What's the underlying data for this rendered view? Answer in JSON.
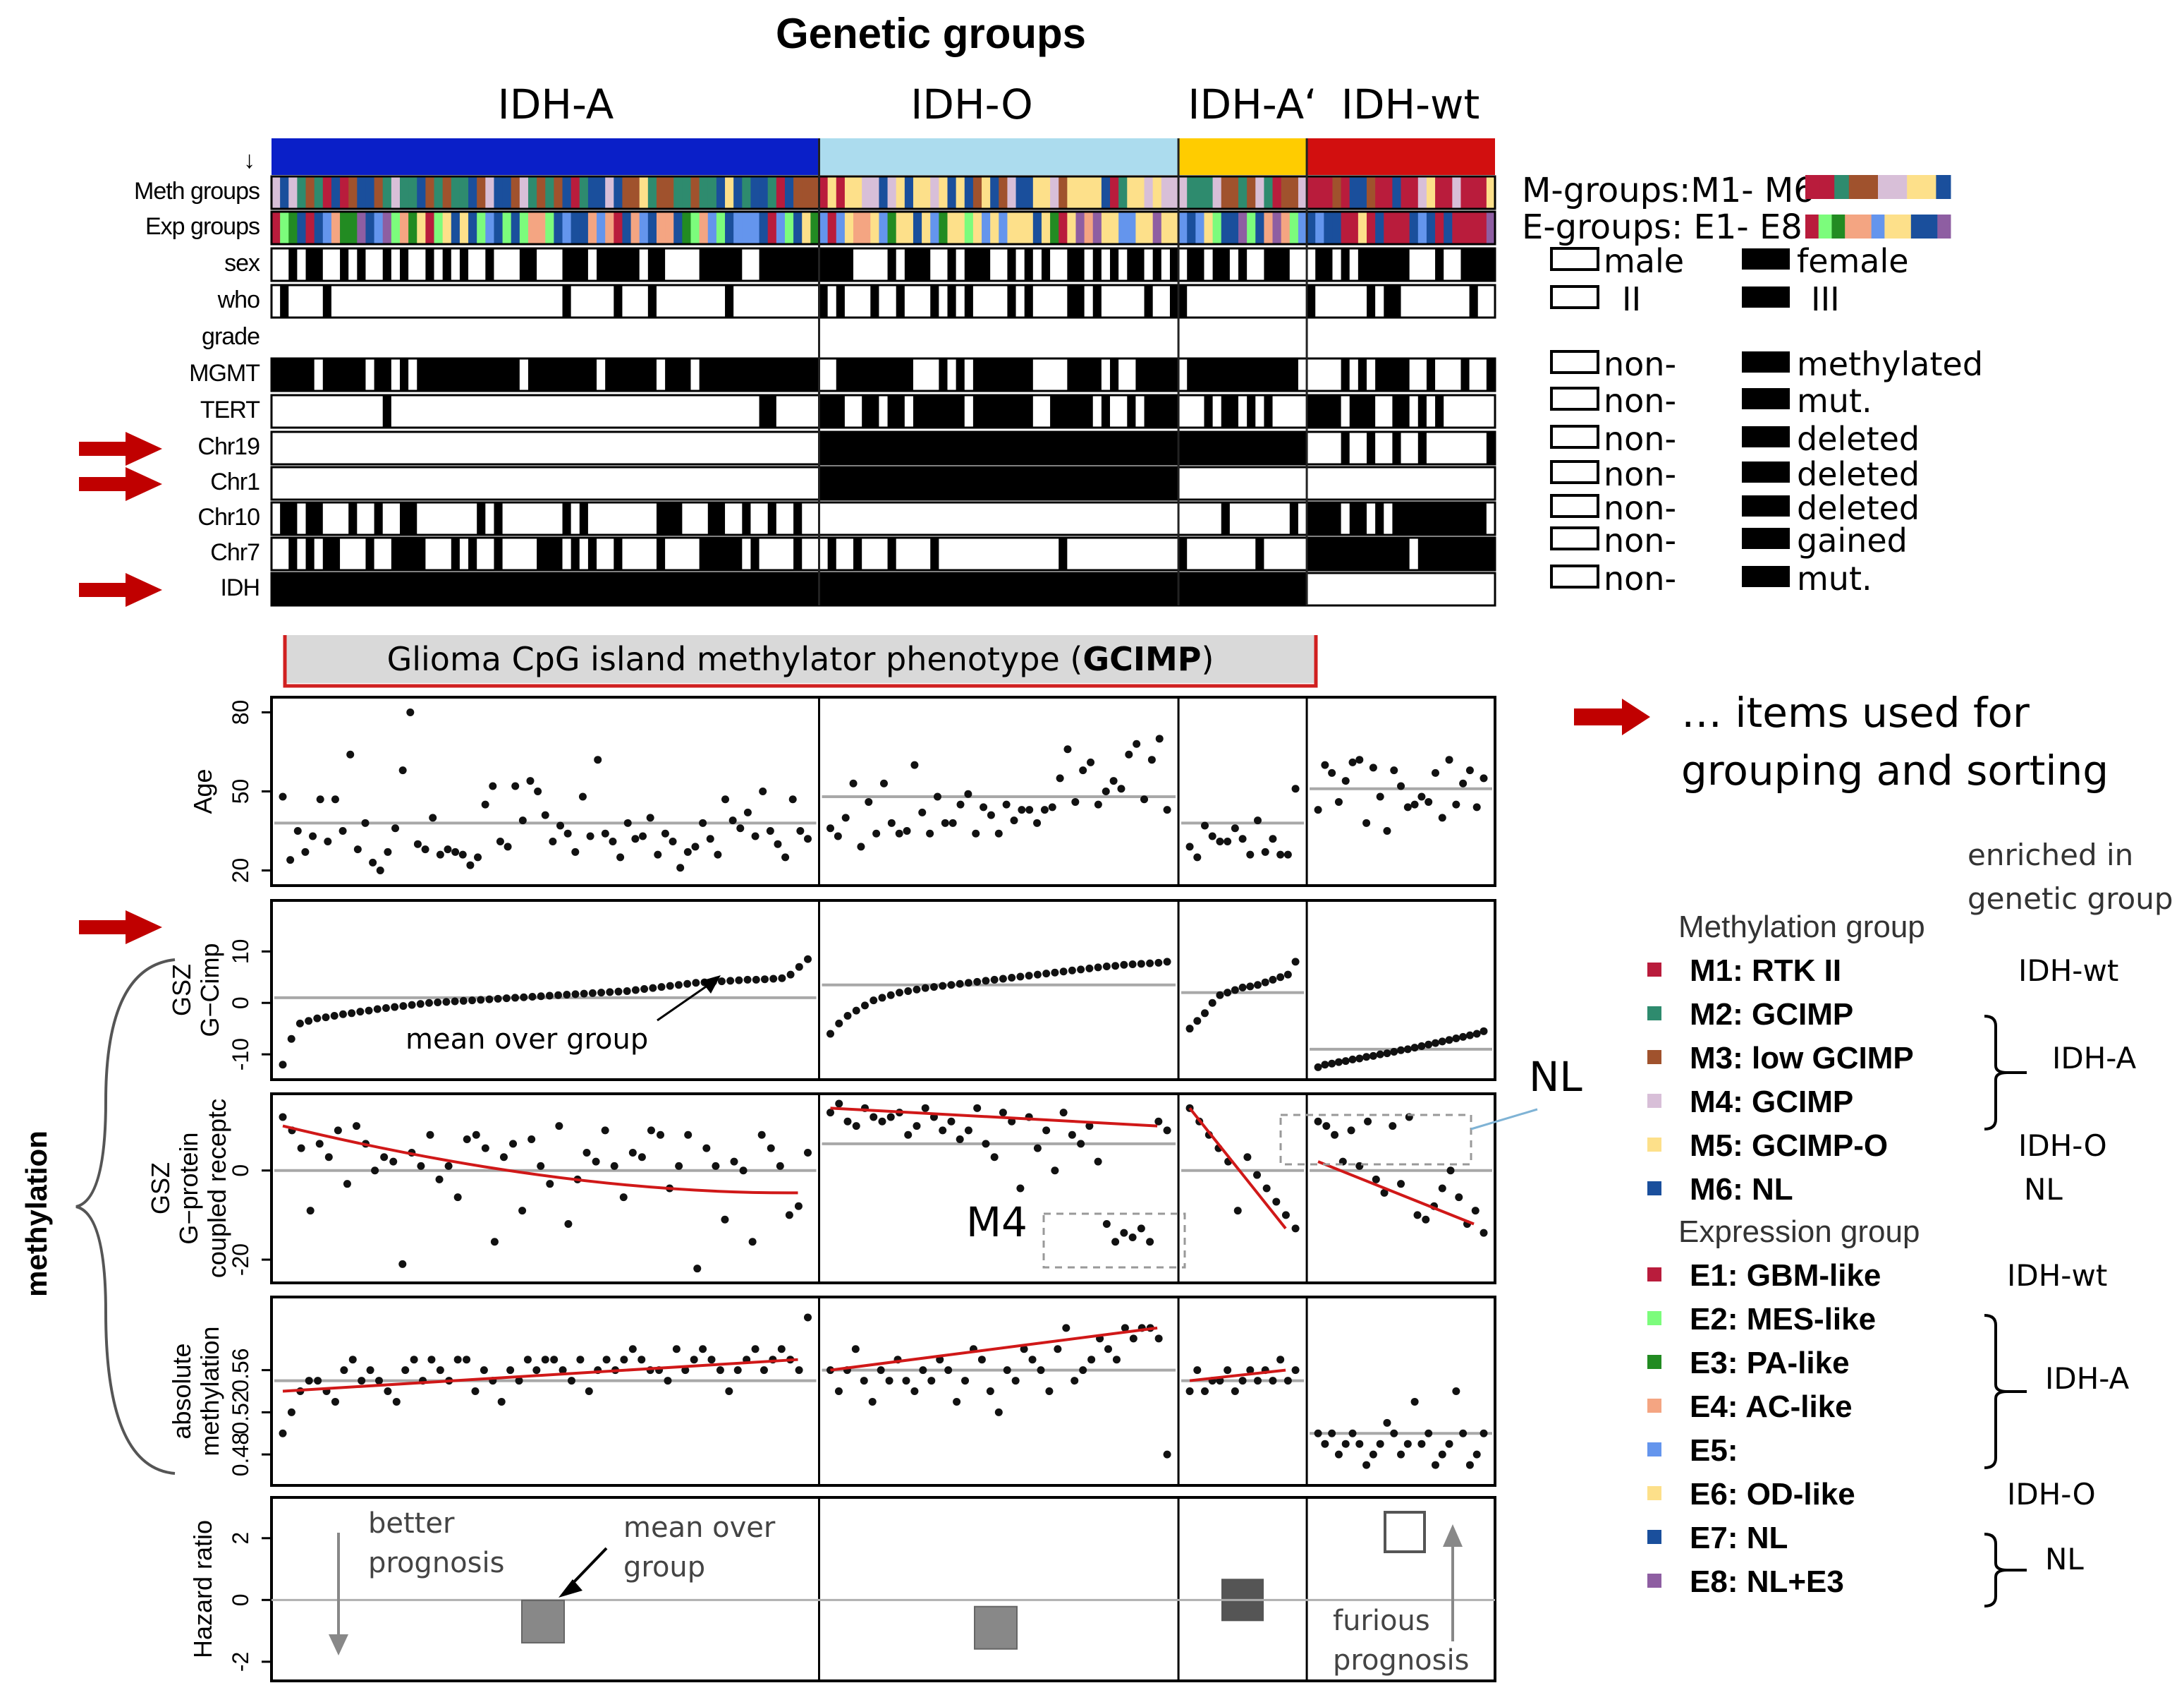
{
  "title": "Genetic groups",
  "groups": [
    {
      "label": "IDH-A",
      "color": "#0a1fc8",
      "n": 64
    },
    {
      "label": "IDH-O",
      "color": "#acdcee",
      "n": 42
    },
    {
      "label": "IDH-A‘",
      "color": "#ffcc00",
      "n": 15
    },
    {
      "label": "IDH-wt",
      "color": "#d20f0f",
      "n": 22
    }
  ],
  "top_strip_label": "↓",
  "annotation_rows": [
    {
      "label": "Meth groups",
      "kind": "meth"
    },
    {
      "label": "Exp groups",
      "kind": "exp"
    },
    {
      "label": "sex",
      "kind": "binary"
    },
    {
      "label": "who",
      "kind": "binary"
    },
    {
      "label": "grade",
      "kind": "blank"
    },
    {
      "label": "MGMT",
      "kind": "binary"
    },
    {
      "label": "TERT",
      "kind": "binary"
    },
    {
      "label": "Chr19",
      "kind": "binary",
      "arrow": true
    },
    {
      "label": "Chr1",
      "kind": "binary",
      "arrow": true
    },
    {
      "label": "Chr10",
      "kind": "binary"
    },
    {
      "label": "Chr7",
      "kind": "binary"
    },
    {
      "label": "IDH",
      "kind": "binary",
      "arrow": true
    }
  ],
  "right_legend": {
    "m_groups": "M-groups:M1- M6",
    "e_groups": "E-groups: E1- E8",
    "m_colors": [
      "#b91c3c",
      "#b91c3c",
      "#2e8b6e",
      "#a0522d",
      "#a0522d",
      "#d8bfd8",
      "#d8bfd8",
      "#fde08a",
      "#fde08a",
      "#1a4f9c"
    ],
    "e_colors": [
      "#b91c3c",
      "#7cfc7c",
      "#228b22",
      "#f4a582",
      "#f4a582",
      "#6495ed",
      "#fde08a",
      "#fde08a",
      "#1a4f9c",
      "#1a4f9c",
      "#8e5ea2"
    ],
    "pairs": [
      {
        "open": "male",
        "filled": "female"
      },
      {
        "open": "II",
        "filled": "III"
      },
      {
        "open": "non-",
        "filled": "methylated"
      },
      {
        "open": "non-",
        "filled": "mut."
      },
      {
        "open": "non-",
        "filled": "deleted"
      },
      {
        "open": "non-",
        "filled": "deleted"
      },
      {
        "open": "non-",
        "filled": "deleted"
      },
      {
        "open": "non-",
        "filled": "gained"
      },
      {
        "open": "non-",
        "filled": "mut."
      }
    ]
  },
  "gcimp": {
    "prefix": "Glioma CpG island methylator phenotype (",
    "bold": "GCIMP",
    "suffix": ")"
  },
  "items_note": {
    "line1": "… items used for",
    "line2": "grouping and sorting"
  },
  "methylation_label": "methylation",
  "chart_data": [
    {
      "type": "scatter",
      "ylabel": "Age",
      "ylim": [
        18,
        82
      ],
      "ticks": [
        20,
        50,
        80
      ],
      "group_means": [
        38,
        48,
        38,
        51
      ],
      "series": [
        {
          "group": "IDH-A",
          "values": [
            48,
            24,
            35,
            27,
            33,
            47,
            31,
            47,
            35,
            64,
            28,
            38,
            23,
            20,
            27,
            36,
            58,
            80,
            30,
            28,
            40,
            26,
            28,
            27,
            26,
            22,
            25,
            45,
            52,
            31,
            29,
            52,
            39,
            54,
            50,
            41,
            31,
            37,
            34,
            27,
            48,
            33,
            62,
            34,
            31,
            25,
            38,
            32,
            33,
            40,
            26,
            34,
            31,
            21,
            27,
            29,
            38,
            32,
            26,
            47,
            39,
            36,
            42,
            33,
            50,
            35,
            30,
            25,
            47,
            35,
            32
          ]
        },
        {
          "group": "IDH-O",
          "values": [
            36,
            33,
            40,
            53,
            29,
            46,
            34,
            53,
            38,
            34,
            35,
            60,
            42,
            34,
            48,
            38,
            38,
            45,
            49,
            34,
            44,
            41,
            34,
            45,
            39,
            43,
            43,
            38,
            43,
            44,
            55,
            66,
            46,
            58,
            61,
            45,
            50,
            54,
            51,
            64,
            68,
            47,
            62,
            70,
            43
          ]
        },
        {
          "group": "IDH-A‘",
          "values": [
            29,
            25,
            37,
            33,
            31,
            31,
            36,
            32,
            26,
            39,
            27,
            32,
            26,
            26,
            51
          ]
        },
        {
          "group": "IDH-wt",
          "values": [
            43,
            60,
            57,
            46,
            54,
            61,
            62,
            38,
            59,
            48,
            35,
            58,
            52,
            44,
            45,
            48,
            46,
            57,
            40,
            62,
            45,
            53,
            58,
            44,
            55
          ]
        }
      ]
    },
    {
      "type": "scatter",
      "ylabel": "GSZ\nG−Cimp",
      "ylim": [
        -13,
        18
      ],
      "ticks": [
        -10,
        0,
        10
      ],
      "group_means": [
        1,
        3.5,
        2,
        -9
      ],
      "annotation": "mean over group",
      "series": [
        {
          "group": "IDH-A",
          "values": [
            -12,
            -7,
            -4,
            -3.5,
            -3,
            -2.8,
            -2.5,
            -2.2,
            -2,
            -1.7,
            -1.5,
            -1.2,
            -1,
            -0.8,
            -0.6,
            -0.4,
            -0.2,
            0,
            0.1,
            0.2,
            0.3,
            0.4,
            0.5,
            0.6,
            0.7,
            0.8,
            0.9,
            1,
            1.1,
            1.2,
            1.3,
            1.4,
            1.5,
            1.6,
            1.7,
            1.8,
            1.9,
            2,
            2.1,
            2.2,
            2.3,
            2.5,
            2.7,
            2.9,
            3.1,
            3.3,
            3.5,
            3.7,
            3.9,
            4,
            4.1,
            4.2,
            4.3,
            4.4,
            4.5,
            4.5,
            4.6,
            4.7,
            4.8,
            5.5,
            7,
            8.5
          ]
        },
        {
          "group": "IDH-O",
          "values": [
            -6,
            -4,
            -2.5,
            -1.5,
            -0.5,
            0.5,
            1,
            1.5,
            2,
            2.3,
            2.6,
            2.9,
            3.1,
            3.3,
            3.5,
            3.7,
            3.9,
            4.1,
            4.3,
            4.5,
            4.7,
            4.9,
            5.1,
            5.3,
            5.5,
            5.7,
            5.9,
            6.1,
            6.3,
            6.5,
            6.7,
            6.9,
            7.1,
            7.2,
            7.4,
            7.5,
            7.6,
            7.7,
            7.8,
            8
          ]
        },
        {
          "group": "IDH-A‘",
          "values": [
            -5,
            -3.5,
            -2,
            0,
            1.5,
            2,
            2.5,
            3,
            3.2,
            3.5,
            4,
            4.5,
            5,
            5.5,
            8
          ]
        },
        {
          "group": "IDH-wt",
          "values": [
            -12.5,
            -12,
            -11.8,
            -11.5,
            -11.3,
            -11,
            -10.8,
            -10.5,
            -10.3,
            -10,
            -9.8,
            -9.5,
            -9.2,
            -9,
            -8.7,
            -8.4,
            -8.1,
            -7.8,
            -7.5,
            -7.2,
            -6.9,
            -6.6,
            -6.3,
            -6,
            -5.5
          ]
        }
      ]
    },
    {
      "type": "scatter",
      "ylabel": "GSZ\nG−protein\ncoupled receptc",
      "ylim": [
        -23,
        15
      ],
      "ticks": [
        -20,
        0
      ],
      "group_means": [
        0,
        6,
        0,
        0
      ],
      "annotations": [
        "M4",
        "NL"
      ],
      "series": [
        {
          "group": "IDH-A",
          "values": [
            12,
            9,
            5,
            -9,
            6,
            3,
            9,
            -3,
            10,
            6,
            0,
            3,
            2,
            -21,
            4,
            1,
            8,
            -2,
            1,
            -6,
            7,
            8,
            5,
            -16,
            3,
            6,
            -9,
            7,
            1,
            -3,
            10,
            -12,
            -2,
            4,
            2,
            9,
            1,
            -6,
            4,
            3,
            9,
            8,
            -4,
            1,
            8,
            -22,
            5,
            1,
            -11,
            2,
            0,
            -16,
            8,
            5,
            1,
            -10,
            -8,
            4
          ]
        },
        {
          "group": "IDH-O",
          "values": [
            13,
            15,
            11,
            10,
            14,
            12,
            11,
            12,
            13,
            8,
            10,
            14,
            12,
            9,
            11,
            7,
            9,
            14,
            6,
            3,
            13,
            11,
            -4,
            12,
            5,
            9,
            0,
            13,
            8,
            6,
            10,
            2,
            -12,
            -16,
            -14,
            -15,
            -13,
            -16,
            11,
            9
          ]
        },
        {
          "group": "IDH-A‘",
          "values": [
            14,
            11,
            8,
            5,
            2,
            -9,
            3,
            -1,
            -4,
            -7,
            -10,
            -13
          ]
        },
        {
          "group": "IDH-wt",
          "values": [
            11,
            10,
            8,
            2,
            9,
            1,
            11,
            -2,
            -5,
            10,
            -3,
            12,
            -10,
            -11,
            -8,
            -4,
            0,
            -6,
            -12,
            -9,
            -14
          ]
        }
      ],
      "trend_lines": [
        {
          "group": "IDH-A",
          "from": 10,
          "to": -5
        },
        {
          "group": "IDH-O",
          "from": 14,
          "to": 10
        },
        {
          "group": "IDH-A‘",
          "from": 14,
          "to": -13
        },
        {
          "group": "IDH-wt",
          "from": 2,
          "to": -12
        }
      ]
    },
    {
      "type": "scatter",
      "ylabel": "absolute\nmethylation",
      "ylim": [
        0.46,
        0.62
      ],
      "ticks": [
        0.48,
        0.52,
        0.56
      ],
      "group_means": [
        0.55,
        0.56,
        0.55,
        0.5
      ],
      "series": [
        {
          "group": "IDH-A",
          "values": [
            0.5,
            0.52,
            0.54,
            0.55,
            0.55,
            0.54,
            0.53,
            0.56,
            0.57,
            0.55,
            0.56,
            0.55,
            0.54,
            0.53,
            0.56,
            0.57,
            0.55,
            0.57,
            0.56,
            0.55,
            0.57,
            0.57,
            0.54,
            0.56,
            0.55,
            0.53,
            0.56,
            0.55,
            0.57,
            0.56,
            0.57,
            0.57,
            0.56,
            0.55,
            0.57,
            0.54,
            0.56,
            0.57,
            0.56,
            0.57,
            0.58,
            0.57,
            0.56,
            0.56,
            0.55,
            0.58,
            0.56,
            0.57,
            0.58,
            0.57,
            0.56,
            0.54,
            0.56,
            0.57,
            0.58,
            0.56,
            0.57,
            0.58,
            0.57,
            0.56,
            0.61
          ]
        },
        {
          "group": "IDH-O",
          "values": [
            0.56,
            0.54,
            0.56,
            0.58,
            0.55,
            0.53,
            0.56,
            0.55,
            0.57,
            0.55,
            0.54,
            0.56,
            0.55,
            0.57,
            0.56,
            0.53,
            0.55,
            0.58,
            0.57,
            0.54,
            0.52,
            0.56,
            0.55,
            0.58,
            0.57,
            0.56,
            0.54,
            0.58,
            0.6,
            0.55,
            0.56,
            0.57,
            0.59,
            0.58,
            0.57,
            0.6,
            0.59,
            0.6,
            0.6,
            0.59,
            0.48
          ]
        },
        {
          "group": "IDH-A‘",
          "values": [
            0.54,
            0.56,
            0.54,
            0.55,
            0.55,
            0.56,
            0.54,
            0.55,
            0.56,
            0.55,
            0.56,
            0.55,
            0.57,
            0.55,
            0.56
          ]
        },
        {
          "group": "IDH-wt",
          "values": [
            0.5,
            0.49,
            0.5,
            0.48,
            0.49,
            0.5,
            0.49,
            0.47,
            0.48,
            0.49,
            0.51,
            0.5,
            0.48,
            0.49,
            0.53,
            0.49,
            0.5,
            0.47,
            0.48,
            0.49,
            0.54,
            0.5,
            0.47,
            0.48,
            0.5
          ]
        }
      ],
      "trend_lines": [
        {
          "group": "IDH-A",
          "from": 0.54,
          "to": 0.57
        },
        {
          "group": "IDH-O",
          "from": 0.56,
          "to": 0.6
        },
        {
          "group": "IDH-A‘",
          "from": 0.55,
          "to": 0.56
        }
      ]
    },
    {
      "type": "box",
      "ylabel": "Hazard ratio",
      "ylim": [
        -2.3,
        3
      ],
      "ticks": [
        -2,
        0,
        2
      ],
      "values": [
        -0.7,
        -0.9,
        0,
        2.2
      ],
      "annotations": {
        "better": "better\nprognosis",
        "mean": "mean over\ngroup",
        "furious": "furious\nprognosis"
      }
    }
  ],
  "legend": {
    "enriched_header": "enriched in\ngenetic group",
    "meth_title": "Methylation group",
    "meth_items": [
      {
        "color": "#b91c3c",
        "label": "M1: RTK II",
        "group": "IDH-wt"
      },
      {
        "color": "#2e8b6e",
        "label": "M2: GCIMP",
        "group": ""
      },
      {
        "color": "#a0522d",
        "label": "M3: low GCIMP",
        "group": "IDH-A"
      },
      {
        "color": "#d8bfd8",
        "label": "M4: GCIMP",
        "group": ""
      },
      {
        "color": "#fde08a",
        "label": "M5: GCIMP-O",
        "group": "IDH-O"
      },
      {
        "color": "#1a4f9c",
        "label": "M6: NL",
        "group": "NL"
      }
    ],
    "exp_title": "Expression group",
    "exp_items": [
      {
        "color": "#b91c3c",
        "label": "E1: GBM-like",
        "group": "IDH-wt"
      },
      {
        "color": "#7cfc7c",
        "label": "E2: MES-like",
        "group": ""
      },
      {
        "color": "#228b22",
        "label": "E3: PA-like",
        "group": "IDH-A"
      },
      {
        "color": "#f4a582",
        "label": "E4: AC-like",
        "group": ""
      },
      {
        "color": "#6495ed",
        "label": "E5:",
        "group": ""
      },
      {
        "color": "#fde08a",
        "label": "E6: OD-like",
        "group": "IDH-O"
      },
      {
        "color": "#1a4f9c",
        "label": "E7: NL",
        "group": ""
      },
      {
        "color": "#8e5ea2",
        "label": "E8: NL+E3",
        "group": "NL"
      }
    ]
  }
}
